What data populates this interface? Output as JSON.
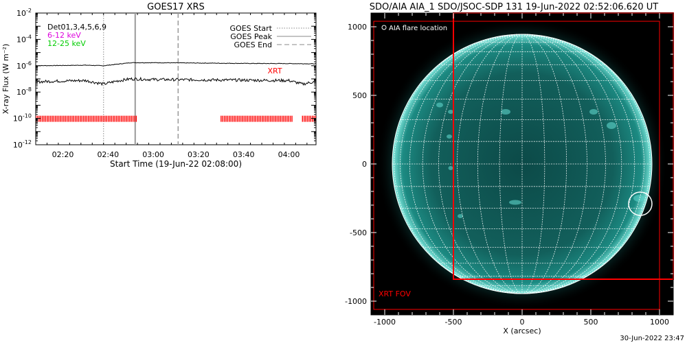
{
  "footer_timestamp": "30-Jun-2022 23:47",
  "chart_data": [
    {
      "type": "line",
      "title": "GOES17 XRS",
      "xlabel": "Start Time (19-Jun-22 02:08:00)",
      "ylabel": "X-ray Flux (W m⁻²)",
      "y_scale": "log",
      "ylim": [
        1e-12,
        0.01
      ],
      "xlim": [
        "02:08",
        "04:12"
      ],
      "x_tick_labels": [
        "02:20",
        "02:40",
        "03:00",
        "03:20",
        "03:40",
        "04:00"
      ],
      "y_tick_labels": [
        {
          "base": "10",
          "exp": "-12"
        },
        {
          "base": "10",
          "exp": "-10"
        },
        {
          "base": "10",
          "exp": "-8"
        },
        {
          "base": "10",
          "exp": "-6"
        },
        {
          "base": "10",
          "exp": "-4"
        },
        {
          "base": "10",
          "exp": "-2"
        }
      ],
      "detector_labels": [
        {
          "text": "Det01,3,4,5,6,9",
          "color": "#000000"
        },
        {
          "text": "6-12 keV",
          "color": "#dd00dd"
        },
        {
          "text": "12-25 keV",
          "color": "#00cc00"
        }
      ],
      "legend": {
        "placement": "top-right",
        "entries": [
          {
            "label": "GOES Start",
            "style": "dotted"
          },
          {
            "label": "GOES Peak",
            "style": "solid"
          },
          {
            "label": "GOES End",
            "style": "dashed"
          }
        ]
      },
      "markers": {
        "goes_start": "02:38",
        "goes_peak": "02:52",
        "goes_end": "03:11"
      },
      "series": [
        {
          "x": [
            "02:08",
            "02:20",
            "02:30",
            "02:38",
            "02:44",
            "02:50",
            "03:00",
            "03:20",
            "03:40",
            "04:00",
            "04:12"
          ],
          "values": [
            1e-06,
            1.05e-06,
            1.1e-06,
            1e-06,
            1.3e-06,
            1.7e-06,
            1.7e-06,
            1.6e-06,
            1.5e-06,
            1.45e-06,
            1.4e-06
          ]
        },
        {
          "x": [
            "02:08",
            "02:20",
            "02:30",
            "02:38",
            "02:44",
            "02:50",
            "03:00",
            "03:20",
            "03:40",
            "04:00",
            "04:06",
            "04:12"
          ],
          "values": [
            6e-08,
            7e-08,
            7.5e-08,
            4e-08,
            7e-08,
            1e-07,
            9e-08,
            8.5e-08,
            8e-08,
            7.5e-08,
            4e-08,
            6.5e-08
          ]
        }
      ],
      "xrt_label": "XRT",
      "xrt_color": "#ff0000",
      "xrt_coverage": [
        [
          "02:08",
          "02:53"
        ],
        [
          "03:30",
          "04:02"
        ],
        [
          "04:06",
          "04:12"
        ]
      ]
    },
    {
      "type": "image",
      "title": "SDO/AIA AIA_1 SDO/JSOC-SDP 131 19-Jun-2022 02:52:06.620 UT",
      "xlabel": "X (arcsec)",
      "ylabel": "",
      "xlim": [
        -1100,
        1100
      ],
      "ylim": [
        -1100,
        1100
      ],
      "x_tick_labels": [
        "-1000",
        "-500",
        "0",
        "500",
        "1000"
      ],
      "y_tick_labels": [
        "1000",
        "500",
        "0",
        "-500",
        "-1000"
      ],
      "x_ticks": [
        -1000,
        -500,
        0,
        500,
        1000
      ],
      "y_ticks": [
        1000,
        500,
        0,
        -500,
        -1000
      ],
      "solar_radius_arcsec": 945,
      "flare_location_label": "AIA flare location",
      "flare_location": [
        860,
        -290
      ],
      "xrt_fov_label": "XRT FOV",
      "xrt_fov_color": "#ff0000",
      "xrt_fov_outer": [
        -1080,
        -1060,
        1000,
        1040
      ],
      "xrt_fov_inner": [
        -500,
        -840,
        1100,
        1100
      ],
      "disk_color": "#1e9e94"
    }
  ]
}
